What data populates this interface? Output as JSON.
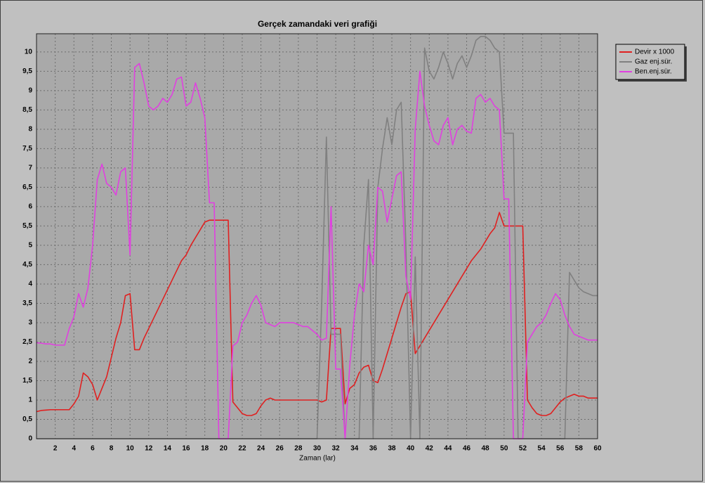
{
  "chart_data": {
    "type": "line",
    "title": "Gerçek zamandaki veri grafiği",
    "x_label": "Zaman (lar)",
    "x": [
      0,
      0.5,
      1,
      1.5,
      2,
      2.5,
      3,
      3.5,
      4,
      4.5,
      5,
      5.5,
      6,
      6.5,
      7,
      7.5,
      8,
      8.5,
      9,
      9.5,
      10,
      10.5,
      11,
      11.5,
      12,
      12.5,
      13,
      13.5,
      14,
      14.5,
      15,
      15.5,
      16,
      16.5,
      17,
      17.5,
      18,
      18.5,
      19,
      19.5,
      20,
      20.5,
      21,
      21.5,
      22,
      22.5,
      23,
      23.5,
      24,
      24.5,
      25,
      25.5,
      26,
      26.5,
      27,
      27.5,
      28,
      28.5,
      29,
      29.5,
      30,
      30.5,
      31,
      31.5,
      32,
      32.5,
      33,
      33.5,
      34,
      34.5,
      35,
      35.5,
      36,
      36.5,
      37,
      37.5,
      38,
      38.5,
      39,
      39.5,
      40,
      40.5,
      41,
      41.5,
      42,
      42.5,
      43,
      43.5,
      44,
      44.5,
      45,
      45.5,
      46,
      46.5,
      47,
      47.5,
      48,
      48.5,
      49,
      49.5,
      50,
      50.5,
      51,
      51.5,
      52,
      52.5,
      53,
      53.5,
      54,
      54.5,
      55,
      55.5,
      56,
      56.5,
      57,
      57.5,
      58,
      58.5,
      59,
      59.5,
      60
    ],
    "series": [
      {
        "name": "Devir x 1000",
        "color": "#e02020",
        "values": [
          0.7,
          0.73,
          0.74,
          0.75,
          0.75,
          0.75,
          0.75,
          0.75,
          0.9,
          1.1,
          1.7,
          1.6,
          1.4,
          1.0,
          1.3,
          1.6,
          2.1,
          2.6,
          3.0,
          3.7,
          3.75,
          2.3,
          2.3,
          2.6,
          2.85,
          3.1,
          3.35,
          3.6,
          3.85,
          4.1,
          4.35,
          4.6,
          4.75,
          5.0,
          5.2,
          5.4,
          5.6,
          5.65,
          5.65,
          5.65,
          5.65,
          5.65,
          0.95,
          0.8,
          0.65,
          0.6,
          0.6,
          0.65,
          0.85,
          1.0,
          1.05,
          1.0,
          1.0,
          1.0,
          1.0,
          1.0,
          1.0,
          1.0,
          1.0,
          1.0,
          1.0,
          0.95,
          1.0,
          2.85,
          2.85,
          2.85,
          0.9,
          1.3,
          1.4,
          1.7,
          1.85,
          1.9,
          1.5,
          1.45,
          1.8,
          2.2,
          2.6,
          3.0,
          3.4,
          3.75,
          3.8,
          2.2,
          2.4,
          2.6,
          2.8,
          3.0,
          3.2,
          3.4,
          3.6,
          3.8,
          4.0,
          4.2,
          4.4,
          4.6,
          4.75,
          4.9,
          5.1,
          5.3,
          5.45,
          5.85,
          5.5,
          5.5,
          5.5,
          5.5,
          5.5,
          1.0,
          0.8,
          0.65,
          0.6,
          0.6,
          0.65,
          0.8,
          0.95,
          1.05,
          1.1,
          1.15,
          1.1,
          1.1,
          1.05,
          1.05,
          1.05
        ]
      },
      {
        "name": "Gaz enj.sür.",
        "color": "#808080",
        "values": [
          0,
          0,
          0,
          0,
          0,
          0,
          0,
          0,
          0,
          0,
          0,
          0,
          0,
          0,
          0,
          0,
          0,
          0,
          0,
          0,
          0,
          0,
          0,
          0,
          0,
          0,
          0,
          0,
          0,
          0,
          0,
          0,
          0,
          0,
          0,
          0,
          0,
          0,
          0,
          0,
          0,
          0,
          0,
          0,
          0,
          0,
          0,
          0,
          0,
          0,
          0,
          0,
          0,
          0,
          0,
          0,
          0,
          0,
          0,
          0,
          0,
          3.5,
          7.8,
          2.7,
          2.7,
          2.7,
          0,
          0,
          0,
          0,
          5.0,
          6.7,
          0,
          6.5,
          7.5,
          8.3,
          7.6,
          8.5,
          8.7,
          5.0,
          0,
          4.7,
          0,
          10.1,
          9.5,
          9.3,
          9.6,
          10.0,
          9.7,
          9.3,
          9.7,
          9.9,
          9.6,
          9.9,
          10.3,
          10.4,
          10.4,
          10.3,
          10.1,
          10.0,
          7.9,
          7.9,
          7.9,
          0,
          0,
          0,
          0,
          0,
          0,
          0,
          0,
          0,
          0,
          0,
          4.3,
          4.1,
          3.9,
          3.8,
          3.75,
          3.7,
          3.7
        ]
      },
      {
        "name": "Ben.enj.sür.",
        "color": "#e040e0",
        "values": [
          2.48,
          2.47,
          2.45,
          2.45,
          2.42,
          2.42,
          2.42,
          2.85,
          3.15,
          3.75,
          3.4,
          3.9,
          5.0,
          6.7,
          7.1,
          6.6,
          6.5,
          6.3,
          6.9,
          7.0,
          4.75,
          9.6,
          9.7,
          9.2,
          8.6,
          8.5,
          8.6,
          8.8,
          8.7,
          8.9,
          9.3,
          9.35,
          8.6,
          8.7,
          9.2,
          8.8,
          8.3,
          6.1,
          6.1,
          0,
          0,
          0,
          2.4,
          2.5,
          3.0,
          3.2,
          3.5,
          3.7,
          3.45,
          3.0,
          2.95,
          2.9,
          3.0,
          3.0,
          3.0,
          3.0,
          2.95,
          2.9,
          2.9,
          2.8,
          2.7,
          2.55,
          2.6,
          6.0,
          1.8,
          1.8,
          0,
          1.9,
          3.2,
          4.0,
          3.8,
          5.0,
          4.5,
          6.5,
          6.4,
          5.6,
          6.2,
          6.8,
          6.9,
          4.2,
          3.6,
          8.0,
          9.5,
          8.6,
          8.1,
          7.7,
          7.6,
          8.1,
          8.3,
          7.6,
          8.0,
          8.1,
          7.95,
          7.9,
          8.8,
          8.9,
          8.7,
          8.8,
          8.6,
          8.5,
          6.2,
          6.2,
          0,
          0,
          0,
          2.5,
          2.7,
          2.9,
          3.0,
          3.2,
          3.5,
          3.75,
          3.6,
          3.2,
          2.9,
          2.7,
          2.65,
          2.6,
          2.55,
          2.55,
          2.55
        ]
      }
    ],
    "xlim": [
      0,
      60
    ],
    "xticks": [
      2,
      4,
      6,
      8,
      10,
      12,
      14,
      16,
      18,
      20,
      22,
      24,
      26,
      28,
      30,
      32,
      34,
      36,
      38,
      40,
      42,
      44,
      46,
      48,
      50,
      52,
      54,
      56,
      58,
      60
    ],
    "ylim": [
      0,
      10.47
    ],
    "yticks": [
      0,
      {
        "value": 0.5,
        "label": "0,5"
      },
      1,
      {
        "value": 1.5,
        "label": "1,5"
      },
      2,
      {
        "value": 2.5,
        "label": "2,5"
      },
      3,
      {
        "value": 3.5,
        "label": "3,5"
      },
      4,
      {
        "value": 4.5,
        "label": "4,5"
      },
      5,
      {
        "value": 5.5,
        "label": "5,5"
      },
      6,
      {
        "value": 6.5,
        "label": "6,5"
      },
      7,
      {
        "value": 7.5,
        "label": "7,5"
      },
      8,
      {
        "value": 8.5,
        "label": "8,5"
      },
      9,
      {
        "value": 9.5,
        "label": "9,5"
      },
      10
    ],
    "grid": true,
    "legend": "right"
  }
}
